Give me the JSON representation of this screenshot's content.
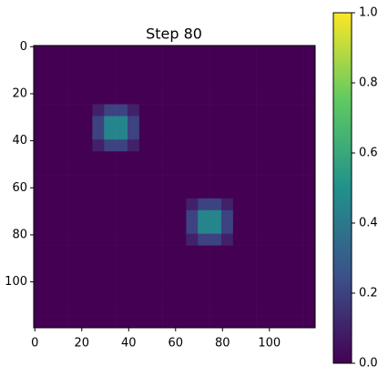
{
  "chart_data": {
    "type": "heatmap",
    "title": "Step 80",
    "xlim": [
      -0.5,
      119.5
    ],
    "ylim": [
      119.5,
      -0.5
    ],
    "xticks": [
      0,
      20,
      40,
      60,
      80,
      100
    ],
    "yticks": [
      0,
      20,
      40,
      60,
      80,
      100
    ],
    "clim": [
      0,
      1
    ],
    "cticks": [
      {
        "value": 0,
        "label": "0.0"
      },
      {
        "value": 0.2,
        "label": "0.2"
      },
      {
        "value": 0.4,
        "label": "0.4"
      },
      {
        "value": 0.6,
        "label": "0.6"
      },
      {
        "value": 0.8,
        "label": "0.8"
      },
      {
        "value": 1,
        "label": "1.0"
      }
    ],
    "colormap": "viridis",
    "z": [
      [
        0,
        0,
        0,
        0,
        0,
        0,
        0,
        0,
        0,
        0,
        0,
        0,
        0,
        0,
        0,
        0,
        0,
        0,
        0,
        0,
        0,
        0,
        0,
        0
      ],
      [
        0,
        0,
        0,
        0,
        0,
        0,
        0,
        0,
        0,
        0,
        0,
        0,
        0,
        0,
        0,
        0,
        0,
        0,
        0,
        0,
        0,
        0,
        0,
        0
      ],
      [
        0,
        0,
        0,
        0,
        0,
        0,
        0,
        0,
        0,
        0,
        0,
        0,
        0,
        0,
        0,
        0,
        0,
        0,
        0,
        0,
        0,
        0,
        0,
        0
      ],
      [
        0,
        0,
        0,
        0,
        0,
        0,
        0,
        0,
        0,
        0,
        0,
        0,
        0,
        0,
        0,
        0,
        0,
        0,
        0,
        0,
        0,
        0,
        0,
        0
      ],
      [
        0,
        0,
        0,
        0,
        0,
        0,
        0,
        0,
        0,
        0,
        0,
        0,
        0,
        0,
        0,
        0,
        0,
        0,
        0,
        0,
        0,
        0,
        0,
        0
      ],
      [
        0,
        0,
        0,
        0,
        0,
        0.1,
        0.2,
        0.2,
        0.1,
        0,
        0,
        0,
        0,
        0,
        0,
        0,
        0,
        0,
        0,
        0,
        0,
        0,
        0,
        0
      ],
      [
        0,
        0,
        0,
        0,
        0,
        0.2,
        0.45,
        0.45,
        0.2,
        0,
        0,
        0,
        0,
        0,
        0,
        0,
        0,
        0,
        0,
        0,
        0,
        0,
        0,
        0
      ],
      [
        0,
        0,
        0,
        0,
        0,
        0.2,
        0.45,
        0.45,
        0.2,
        0,
        0,
        0,
        0,
        0,
        0,
        0,
        0,
        0,
        0,
        0,
        0,
        0,
        0,
        0
      ],
      [
        0,
        0,
        0,
        0,
        0,
        0.1,
        0.2,
        0.2,
        0.1,
        0,
        0,
        0,
        0,
        0,
        0,
        0,
        0,
        0,
        0,
        0,
        0,
        0,
        0,
        0
      ],
      [
        0,
        0,
        0,
        0,
        0,
        0,
        0,
        0,
        0,
        0,
        0,
        0,
        0,
        0,
        0,
        0,
        0,
        0,
        0,
        0,
        0,
        0,
        0,
        0
      ],
      [
        0,
        0,
        0,
        0,
        0,
        0,
        0,
        0,
        0,
        0,
        0,
        0,
        0,
        0,
        0,
        0,
        0,
        0,
        0,
        0,
        0,
        0,
        0,
        0
      ],
      [
        0,
        0,
        0,
        0,
        0,
        0,
        0,
        0,
        0,
        0,
        0,
        0,
        0,
        0,
        0,
        0,
        0,
        0,
        0,
        0,
        0,
        0,
        0,
        0
      ],
      [
        0,
        0,
        0,
        0,
        0,
        0,
        0,
        0,
        0,
        0,
        0,
        0,
        0,
        0,
        0,
        0,
        0,
        0,
        0,
        0,
        0,
        0,
        0,
        0
      ],
      [
        0,
        0,
        0,
        0,
        0,
        0,
        0,
        0,
        0,
        0,
        0,
        0,
        0,
        0.1,
        0.2,
        0.2,
        0.1,
        0,
        0,
        0,
        0,
        0,
        0,
        0
      ],
      [
        0,
        0,
        0,
        0,
        0,
        0,
        0,
        0,
        0,
        0,
        0,
        0,
        0,
        0.2,
        0.45,
        0.45,
        0.2,
        0,
        0,
        0,
        0,
        0,
        0,
        0
      ],
      [
        0,
        0,
        0,
        0,
        0,
        0,
        0,
        0,
        0,
        0,
        0,
        0,
        0,
        0.2,
        0.45,
        0.45,
        0.2,
        0,
        0,
        0,
        0,
        0,
        0,
        0
      ],
      [
        0,
        0,
        0,
        0,
        0,
        0,
        0,
        0,
        0,
        0,
        0,
        0,
        0,
        0.1,
        0.2,
        0.2,
        0.1,
        0,
        0,
        0,
        0,
        0,
        0,
        0
      ],
      [
        0,
        0,
        0,
        0,
        0,
        0,
        0,
        0,
        0,
        0,
        0,
        0,
        0,
        0,
        0,
        0,
        0,
        0,
        0,
        0,
        0,
        0,
        0,
        0
      ],
      [
        0,
        0,
        0,
        0,
        0,
        0,
        0,
        0,
        0,
        0,
        0,
        0,
        0,
        0,
        0,
        0,
        0,
        0,
        0,
        0,
        0,
        0,
        0,
        0
      ],
      [
        0,
        0,
        0,
        0,
        0,
        0,
        0,
        0,
        0,
        0,
        0,
        0,
        0,
        0,
        0,
        0,
        0,
        0,
        0,
        0,
        0,
        0,
        0,
        0
      ],
      [
        0,
        0,
        0,
        0,
        0,
        0,
        0,
        0,
        0,
        0,
        0,
        0,
        0,
        0,
        0,
        0,
        0,
        0,
        0,
        0,
        0,
        0,
        0,
        0
      ],
      [
        0,
        0,
        0,
        0,
        0,
        0,
        0,
        0,
        0,
        0,
        0,
        0,
        0,
        0,
        0,
        0,
        0,
        0,
        0,
        0,
        0,
        0,
        0,
        0
      ],
      [
        0,
        0,
        0,
        0,
        0,
        0,
        0,
        0,
        0,
        0,
        0,
        0,
        0,
        0,
        0,
        0,
        0,
        0,
        0,
        0,
        0,
        0,
        0,
        0
      ],
      [
        0,
        0,
        0,
        0,
        0,
        0,
        0,
        0,
        0,
        0,
        0,
        0,
        0,
        0,
        0,
        0,
        0,
        0,
        0,
        0,
        0,
        0,
        0,
        0
      ]
    ]
  }
}
